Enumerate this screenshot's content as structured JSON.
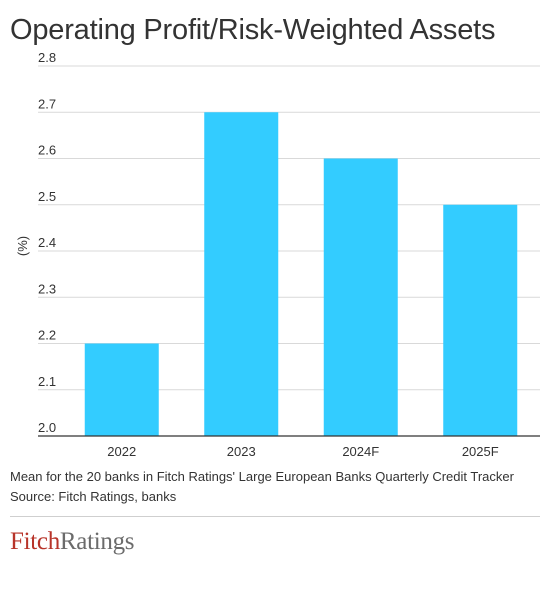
{
  "header": {
    "title": "Operating Profit/Risk-Weighted Assets"
  },
  "chart_data": {
    "type": "bar",
    "title": "Operating Profit/Risk-Weighted Assets",
    "categories": [
      "2022",
      "2023",
      "2024F",
      "2025F"
    ],
    "values": [
      2.2,
      2.7,
      2.6,
      2.5
    ],
    "ylabel": "(%)",
    "xlabel": "",
    "ylim": [
      2.0,
      2.8
    ],
    "yticks": [
      "2.0",
      "2.1",
      "2.2",
      "2.3",
      "2.4",
      "2.5",
      "2.6",
      "2.7",
      "2.8"
    ],
    "grid": true,
    "bar_color": "#33ccff"
  },
  "footer": {
    "note": "Mean for the 20 banks in Fitch Ratings' Large European Banks Quarterly Credit Tracker",
    "source": "Source: Fitch Ratings, banks"
  },
  "logo": {
    "part1": "Fitch",
    "part2": "Ratings"
  }
}
